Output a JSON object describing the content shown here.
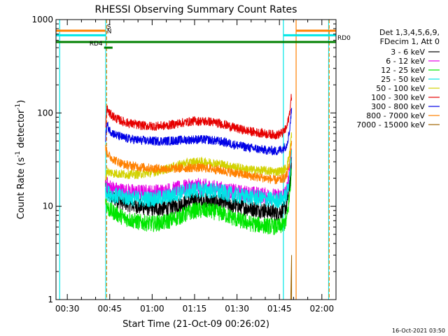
{
  "chart_data": {
    "type": "line",
    "title": "RHESSI Observing Summary Count Rates",
    "xlabel": "Start Time (21-Oct-09 00:26:02)",
    "ylabel_main": "Count Rate (s",
    "ylabel_sup1": "-1",
    "ylabel_mid": " detector",
    "ylabel_sup2": "-1",
    "ylabel_end": ")",
    "yscale": "log",
    "ylim": [
      1,
      1000
    ],
    "xlim_min": [
      26.0,
      125.0
    ],
    "x_unit": "minutes after 00:00",
    "xticks": [
      {
        "value": 30,
        "label": "00:30"
      },
      {
        "value": 45,
        "label": "00:45"
      },
      {
        "value": 60,
        "label": "01:00"
      },
      {
        "value": 75,
        "label": "01:15"
      },
      {
        "value": 90,
        "label": "01:30"
      },
      {
        "value": 105,
        "label": "01:45"
      },
      {
        "value": 120,
        "label": "02:00"
      }
    ],
    "yticks": [
      {
        "value": 1,
        "label": "1"
      },
      {
        "value": 10,
        "label": "10"
      },
      {
        "value": 100,
        "label": "100"
      },
      {
        "value": 1000,
        "label": "1000"
      }
    ],
    "legend": {
      "placement": "right",
      "header": [
        "Det 1,3,4,5,6,9,",
        "FDecim 1, Att 0"
      ],
      "entries": [
        {
          "label": "3 - 6 keV",
          "color": "#000000"
        },
        {
          "label": "6 - 12 keV",
          "color": "#e600e6"
        },
        {
          "label": "12 - 25 keV",
          "color": "#00e600"
        },
        {
          "label": "25 - 50 keV",
          "color": "#00e6e6"
        },
        {
          "label": "50 - 100 keV",
          "color": "#d2d200"
        },
        {
          "label": "100 - 300 keV",
          "color": "#e60000"
        },
        {
          "label": "300 - 800 keV",
          "color": "#0000e6"
        },
        {
          "label": "800 - 7000 keV",
          "color": "#ff8000"
        },
        {
          "label": "7000 - 15000 keV",
          "color": "#a06400"
        }
      ]
    },
    "series_x": [
      43.5,
      44,
      45,
      47,
      50,
      55,
      60,
      65,
      70,
      75,
      80,
      85,
      90,
      95,
      100,
      104,
      106,
      107.5,
      108.5,
      109.3
    ],
    "series": [
      {
        "band": "3 - 6 keV",
        "color": "#000000",
        "values": [
          18,
          15,
          13,
          12,
          11,
          10,
          9.5,
          9.5,
          10.5,
          11.5,
          11.5,
          11,
          10,
          9.5,
          9,
          8.5,
          9,
          10,
          16,
          28
        ]
      },
      {
        "band": "6 - 12 keV",
        "color": "#e600e6",
        "values": [
          21,
          17,
          16,
          15,
          14.5,
          14,
          14,
          14.5,
          15.5,
          16.5,
          16,
          15,
          14,
          13.5,
          13,
          12.5,
          13,
          14,
          22,
          40
        ]
      },
      {
        "band": "12 - 25 keV",
        "color": "#00e600",
        "values": [
          12,
          10,
          9,
          8.5,
          7.5,
          6.8,
          6.5,
          6.8,
          7.8,
          9,
          9,
          8.3,
          7.2,
          6.5,
          6.2,
          6,
          6.2,
          7,
          12,
          24
        ]
      },
      {
        "band": "25 - 50 keV",
        "color": "#00e6e6",
        "values": [
          15,
          14,
          13.5,
          13,
          12.5,
          12,
          12,
          12.5,
          14,
          15,
          14.8,
          14,
          13,
          12.5,
          12,
          11.5,
          12,
          13,
          20,
          35
        ]
      },
      {
        "band": "50 - 100 keV",
        "color": "#d2d200",
        "values": [
          20,
          24,
          23,
          22.5,
          22,
          22,
          23,
          25,
          28,
          30,
          29.5,
          28,
          26,
          24.5,
          24,
          23.5,
          24,
          26,
          35,
          60
        ]
      },
      {
        "band": "100 - 300 keV",
        "color": "#e60000",
        "values": [
          65,
          112,
          98,
          88,
          80,
          74,
          72,
          73,
          78,
          82,
          81,
          76,
          68,
          63,
          60,
          58,
          61,
          68,
          95,
          155
        ]
      },
      {
        "band": "300 - 800 keV",
        "color": "#0000e6",
        "values": [
          52,
          75,
          65,
          58,
          54,
          51,
          50,
          50,
          51,
          52,
          51.5,
          49,
          45,
          42,
          40,
          39,
          41,
          45,
          62,
          110
        ]
      },
      {
        "band": "800 - 7000 keV",
        "color": "#ff8000",
        "values": [
          42,
          38,
          34,
          31,
          28,
          26.5,
          25.5,
          25.2,
          25.5,
          26,
          25.5,
          24,
          22.5,
          21,
          20,
          19,
          19.5,
          21,
          28,
          50
        ]
      }
    ],
    "brown_spike": {
      "x": [
        109.0,
        109.3
      ],
      "values": [
        1,
        3
      ]
    },
    "flag_bars": [
      {
        "label": "S",
        "color": "#ff8000",
        "x": [
          26,
          43.5
        ],
        "x2": [
          111,
          125
        ],
        "y": 760
      },
      {
        "label": "N",
        "color": "#00e6e6",
        "x": [
          26,
          43.5
        ],
        "x2": [
          106.5,
          125
        ],
        "y": 680
      },
      {
        "label": "RD0",
        "color": "#008000",
        "x": [
          26,
          125
        ],
        "y": 575
      },
      {
        "label": "RD4",
        "color": "#008000",
        "x": [
          43,
          46
        ],
        "y": 500
      }
    ],
    "vertical_lines": [
      {
        "x": 27.3,
        "color": "#00e6e6",
        "style": "solid"
      },
      {
        "x": 43.6,
        "color": "#00e6e6",
        "style": "solid"
      },
      {
        "x": 43.9,
        "color": "#ff8000",
        "style": "dashed"
      },
      {
        "x": 106.4,
        "color": "#00e6e6",
        "style": "solid"
      },
      {
        "x": 110.9,
        "color": "#ff8000",
        "style": "solid"
      },
      {
        "x": 122.4,
        "color": "#00e6e6",
        "style": "solid"
      },
      {
        "x": 122.6,
        "color": "#ff8000",
        "style": "dashed"
      }
    ]
  },
  "timestamp": "16-Oct-2021 03:50"
}
